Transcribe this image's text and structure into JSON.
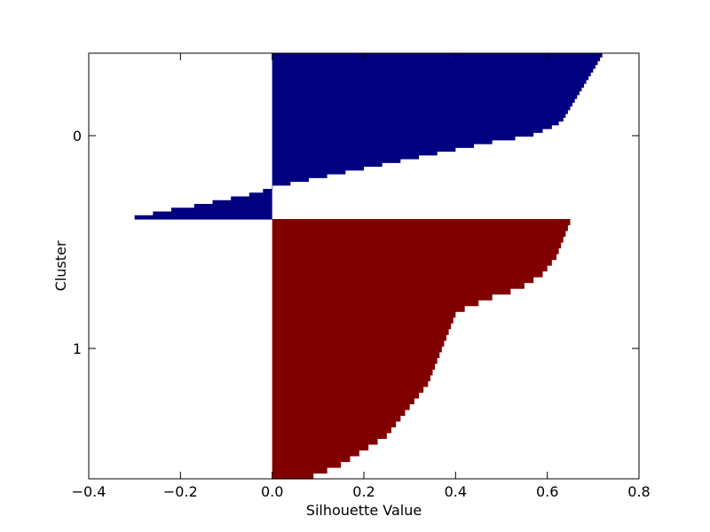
{
  "chart_data": {
    "type": "bar",
    "orientation": "horizontal",
    "subtype": "silhouette",
    "title": "",
    "xlabel": "Silhouette Value",
    "ylabel": "Cluster",
    "xlim": [
      -0.4,
      0.8
    ],
    "xticks": [
      -0.4,
      -0.2,
      0.0,
      0.2,
      0.4,
      0.6,
      0.8
    ],
    "xtick_labels": [
      "−0.4",
      "−0.2",
      "0.0",
      "0.2",
      "0.4",
      "0.6",
      "0.8"
    ],
    "yticks": [
      "0",
      "1"
    ],
    "grid": false,
    "legend": "none",
    "clusters": [
      {
        "label": "0",
        "color": "#000080",
        "samples_sorted_desc": [
          0.72,
          0.715,
          0.71,
          0.705,
          0.7,
          0.695,
          0.69,
          0.685,
          0.68,
          0.675,
          0.67,
          0.665,
          0.66,
          0.655,
          0.65,
          0.645,
          0.64,
          0.635,
          0.625,
          0.61,
          0.59,
          0.57,
          0.53,
          0.48,
          0.44,
          0.4,
          0.36,
          0.32,
          0.28,
          0.24,
          0.2,
          0.16,
          0.12,
          0.08,
          0.04,
          0.0,
          -0.02,
          -0.05,
          -0.09,
          -0.13,
          -0.17,
          -0.22,
          -0.26,
          -0.3
        ]
      },
      {
        "label": "1",
        "color": "#800000",
        "samples_sorted_desc": [
          0.65,
          0.645,
          0.64,
          0.635,
          0.63,
          0.625,
          0.62,
          0.61,
          0.6,
          0.59,
          0.57,
          0.55,
          0.52,
          0.48,
          0.45,
          0.42,
          0.4,
          0.395,
          0.39,
          0.385,
          0.38,
          0.375,
          0.37,
          0.365,
          0.36,
          0.355,
          0.35,
          0.345,
          0.34,
          0.33,
          0.32,
          0.31,
          0.3,
          0.29,
          0.28,
          0.27,
          0.26,
          0.25,
          0.23,
          0.21,
          0.19,
          0.17,
          0.15,
          0.12,
          0.09
        ]
      }
    ]
  }
}
